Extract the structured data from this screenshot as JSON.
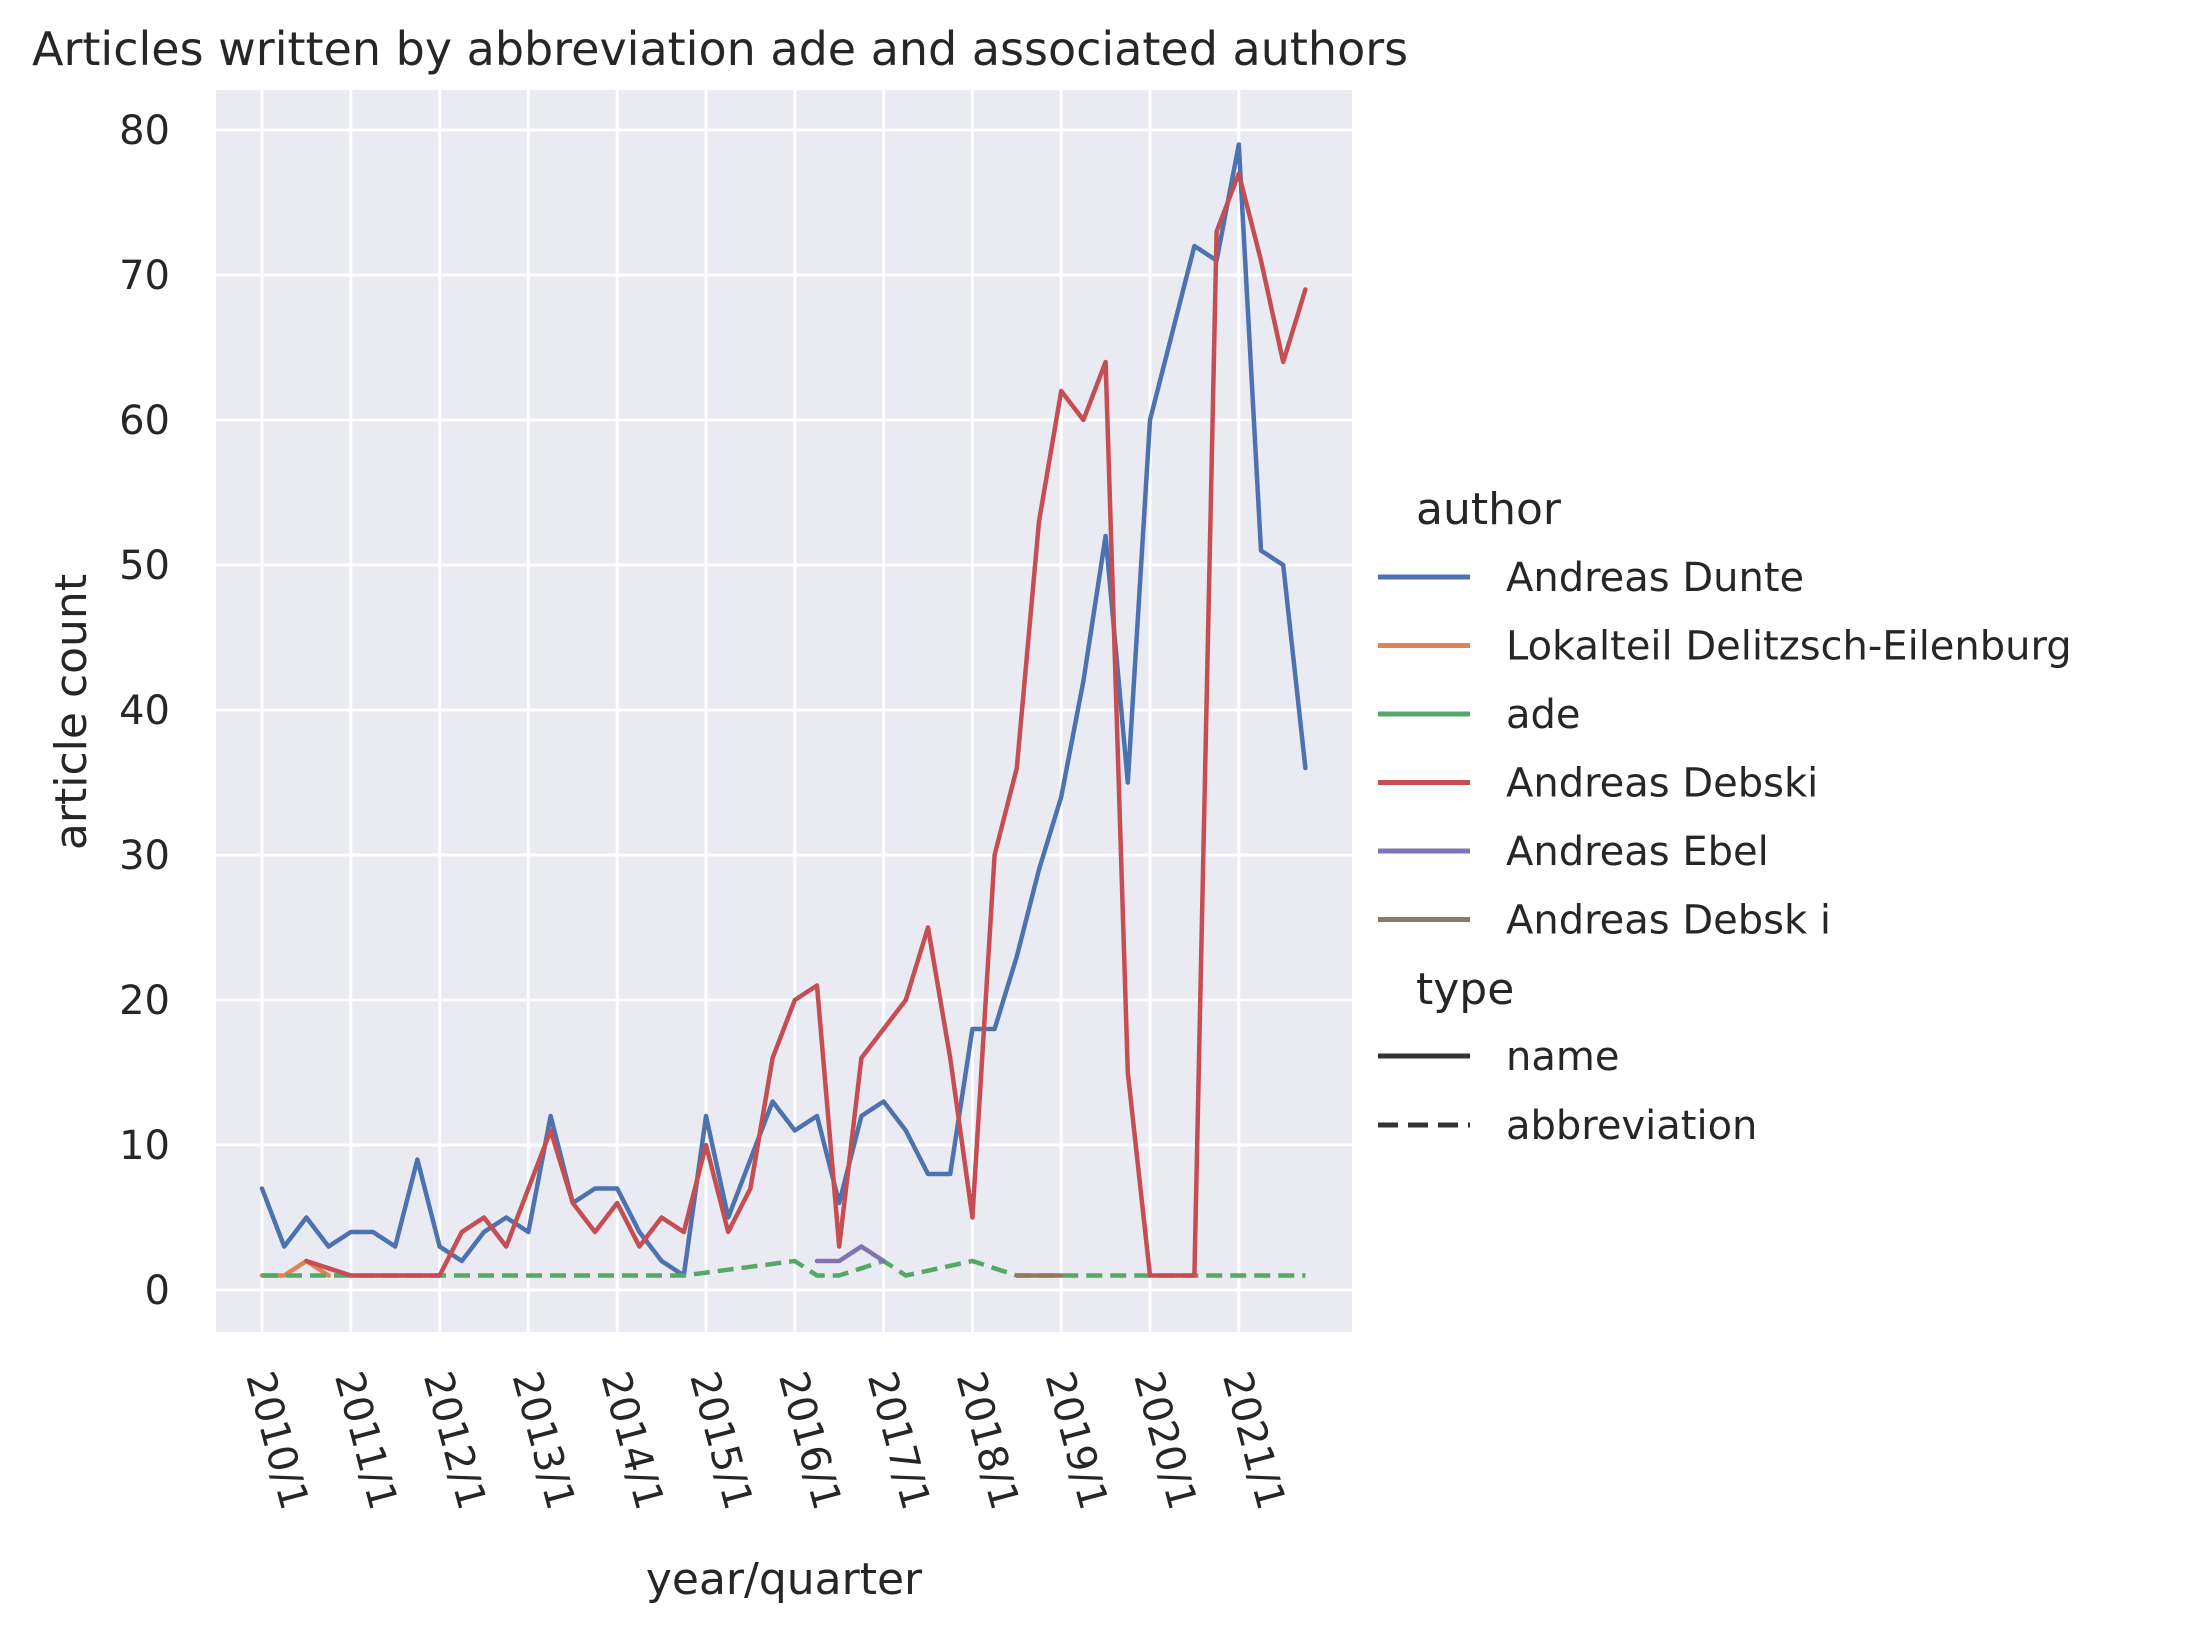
{
  "chart_data": {
    "type": "line",
    "title": "Articles written by abbreviation ade and associated authors",
    "xlabel": "year/quarter",
    "ylabel": "article count",
    "x_tick_labels": [
      "2010/1",
      "2011/1",
      "2012/1",
      "2013/1",
      "2014/1",
      "2015/1",
      "2016/1",
      "2017/1",
      "2018/1",
      "2019/1",
      "2020/1",
      "2021/1"
    ],
    "y_ticks": [
      0,
      10,
      20,
      30,
      40,
      50,
      60,
      70,
      80
    ],
    "ylim": [
      -3,
      83
    ],
    "grid": true,
    "legend": {
      "placement": "right",
      "author_title": "author",
      "type_title": "type",
      "types": [
        {
          "label": "name",
          "dash": "solid"
        },
        {
          "label": "abbreviation",
          "dash": "dashed"
        }
      ]
    },
    "series": [
      {
        "name": "Andreas Dunte",
        "color": "#4c72b0",
        "type": "name",
        "x": [
          "2010/1",
          "2010/2",
          "2010/3",
          "2010/4",
          "2011/1",
          "2011/2",
          "2011/3",
          "2011/4",
          "2012/1",
          "2012/2",
          "2012/3",
          "2012/4",
          "2013/1",
          "2013/2",
          "2013/3",
          "2013/4",
          "2014/1",
          "2014/2",
          "2014/3",
          "2014/4",
          "2015/1",
          "2015/2",
          "2015/3",
          "2015/4",
          "2016/1",
          "2016/2",
          "2016/3",
          "2016/4",
          "2017/1",
          "2017/2",
          "2017/3",
          "2017/4",
          "2018/1",
          "2018/2",
          "2018/3",
          "2018/4",
          "2019/1",
          "2019/2",
          "2019/3",
          "2019/4",
          "2020/1",
          "2020/2",
          "2020/3",
          "2020/4",
          "2021/1",
          "2021/2",
          "2021/3",
          "2021/4"
        ],
        "values": [
          7,
          3,
          5,
          3,
          4,
          4,
          3,
          9,
          3,
          2,
          4,
          5,
          4,
          12,
          6,
          7,
          7,
          4,
          2,
          1,
          12,
          5,
          9,
          13,
          11,
          12,
          6,
          12,
          13,
          11,
          8,
          8,
          18,
          18,
          23,
          29,
          34,
          42,
          52,
          35,
          60,
          66,
          72,
          71,
          79,
          51,
          50,
          36
        ]
      },
      {
        "name": "Lokalteil Delitzsch-Eilenburg",
        "color": "#dd8452",
        "type": "name",
        "x": [
          "2010/1",
          "2010/2",
          "2010/3",
          "2010/4"
        ],
        "values": [
          1,
          1,
          2,
          1
        ]
      },
      {
        "name": "ade",
        "color": "#55a868",
        "type": "abbreviation",
        "x": [
          "2010/1",
          "2010/2",
          "2010/3",
          "2010/4",
          "2011/1",
          "2011/2",
          "2011/3",
          "2011/4",
          "2012/1",
          "2012/2",
          "2012/3",
          "2012/4",
          "2013/1",
          "2013/2",
          "2013/3",
          "2013/4",
          "2014/1",
          "2014/2",
          "2014/3",
          "2014/4",
          "2015/1",
          "2015/2",
          "2015/3",
          "2015/4",
          "2016/1",
          "2016/2",
          "2016/3",
          "2016/4",
          "2017/1",
          "2017/2",
          "2017/3",
          "2017/4",
          "2018/1",
          "2018/2",
          "2018/3",
          "2018/4",
          "2019/1",
          "2019/2",
          "2019/3",
          "2019/4",
          "2020/1",
          "2020/2",
          "2020/3",
          "2020/4",
          "2021/1",
          "2021/2",
          "2021/3",
          "2021/4"
        ],
        "values": [
          1,
          1,
          1,
          1,
          1,
          1,
          1,
          1,
          1,
          1,
          1,
          1,
          1,
          1,
          1,
          1,
          1,
          1,
          1,
          1,
          1.2,
          1.4,
          1.6,
          1.8,
          2,
          1,
          1,
          1.5,
          2,
          1,
          1.33,
          1.67,
          2,
          1.5,
          1,
          1,
          1,
          1,
          1,
          1,
          1,
          1,
          1,
          1,
          1,
          1,
          1,
          1
        ]
      },
      {
        "name": "Andreas Debski",
        "color": "#c44e52",
        "type": "name",
        "x": [
          "2010/3",
          "2010/4",
          "2011/1",
          "2011/2",
          "2011/3",
          "2011/4",
          "2012/1",
          "2012/2",
          "2012/3",
          "2012/4",
          "2013/1",
          "2013/2",
          "2013/3",
          "2013/4",
          "2014/1",
          "2014/2",
          "2014/3",
          "2014/4",
          "2015/1",
          "2015/2",
          "2015/3",
          "2015/4",
          "2016/1",
          "2016/2",
          "2016/3",
          "2016/4",
          "2017/1",
          "2017/2",
          "2017/3",
          "2017/4",
          "2018/1",
          "2018/2",
          "2018/3",
          "2018/4",
          "2019/1",
          "2019/2",
          "2019/3",
          "2019/4",
          "2020/1",
          "2020/2",
          "2020/3",
          "2020/4",
          "2021/1",
          "2021/2",
          "2021/3",
          "2021/4"
        ],
        "values": [
          2,
          1.5,
          1,
          1,
          1,
          1,
          1,
          4,
          5,
          3,
          7,
          11,
          6,
          4,
          6,
          3,
          5,
          4,
          10,
          4,
          7,
          16,
          20,
          21,
          3,
          16,
          18,
          20,
          25,
          16,
          5,
          30,
          36,
          53,
          62,
          60,
          64,
          15,
          1,
          1,
          1,
          73,
          77,
          71,
          64,
          69
        ]
      },
      {
        "name": "Andreas Ebel",
        "color": "#8172b3",
        "type": "name",
        "x": [
          "2016/2",
          "2016/3",
          "2016/4",
          "2017/1"
        ],
        "values": [
          2,
          2,
          3,
          2
        ]
      },
      {
        "name": "Andreas Debsk i",
        "color": "#937860",
        "type": "name",
        "x": [
          "2018/3",
          "2018/4",
          "2019/1"
        ],
        "values": [
          1,
          1,
          1
        ]
      }
    ]
  }
}
